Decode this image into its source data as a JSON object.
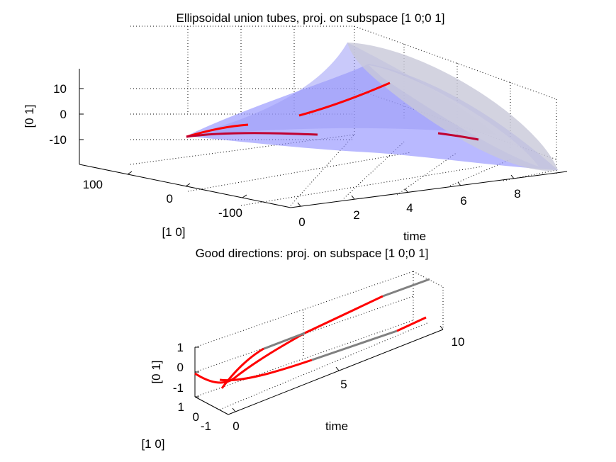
{
  "chart_data": [
    {
      "type": "surface",
      "title": "Ellipsoidal union tubes, proj. on subspace [1 0;0 1]",
      "xlabel": "time",
      "ylabel": "[1 0]",
      "zlabel": "[0 1]",
      "x_ticks": [
        "0",
        "2",
        "4",
        "6",
        "8"
      ],
      "y_ticks": [
        "100",
        "0",
        "-100"
      ],
      "z_ticks": [
        "10",
        "0",
        "-10"
      ],
      "xlim": [
        0,
        10
      ],
      "ylim": [
        -150,
        150
      ],
      "zlim": [
        -15,
        15
      ],
      "grid": true,
      "surface_color": "#7f7fff",
      "curve_color": "#ff0000",
      "curves": [
        {
          "name": "",
          "points": [
            [
              0,
              0,
              -8
            ],
            [
              1,
              20,
              -5
            ],
            [
              2,
              40,
              -4
            ]
          ]
        },
        {
          "name": "",
          "points": [
            [
              0,
              0,
              -8
            ],
            [
              3,
              -30,
              -8
            ],
            [
              5,
              -80,
              -10
            ]
          ]
        },
        {
          "name": "",
          "points": [
            [
              4,
              10,
              0
            ],
            [
              5,
              20,
              4
            ],
            [
              6,
              30,
              11
            ]
          ]
        },
        {
          "name": "",
          "points": [
            [
              7,
              -40,
              -6
            ],
            [
              8,
              -60,
              -8
            ]
          ]
        }
      ]
    },
    {
      "type": "line3d",
      "title": "Good directions: proj. on subspace [1 0;0 1]",
      "xlabel": "time",
      "ylabel": "[1 0]",
      "zlabel": "[0 1]",
      "x_ticks": [
        "0",
        "5",
        "10"
      ],
      "y_ticks": [
        "1",
        "0",
        "-1"
      ],
      "z_ticks": [
        "1",
        "0",
        "-1"
      ],
      "xlim": [
        0,
        10
      ],
      "ylim": [
        -1,
        1
      ],
      "zlim": [
        -1,
        1
      ],
      "grid": true,
      "highlight_color": "#ff0000",
      "base_color": "#808080"
    }
  ]
}
